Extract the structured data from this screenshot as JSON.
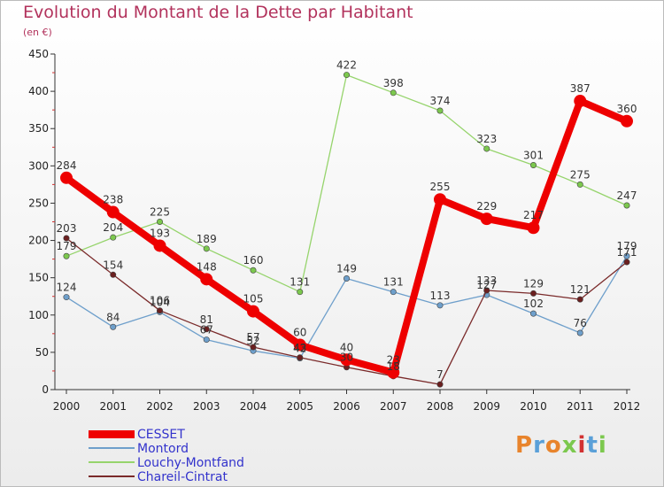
{
  "header": {
    "title": "Evolution du Montant de la Dette par Habitant",
    "subtitle": "(en €)"
  },
  "colors": {
    "title": "#b2325c",
    "legend_text": "#3333cc",
    "axis": "#333333"
  },
  "chart_data": {
    "type": "line",
    "title": "Evolution du Montant de la Dette par Habitant",
    "subtitle": "(en €)",
    "xlabel": "",
    "ylabel": "",
    "ylim": [
      0,
      450
    ],
    "yticks": [
      0,
      50,
      100,
      150,
      200,
      250,
      300,
      350,
      400,
      450
    ],
    "x": [
      "2000",
      "2001",
      "2002",
      "2003",
      "2004",
      "2005",
      "2006",
      "2007",
      "2008",
      "2009",
      "2010",
      "2011",
      "2012"
    ],
    "grid": false,
    "legend_position": "bottom-left",
    "series": [
      {
        "name": "Montord",
        "color": "#6e9fcb",
        "width": 1.3,
        "dot": "#6e9fcb",
        "values": [
          124,
          84,
          104,
          67,
          52,
          42,
          149,
          131,
          113,
          127,
          102,
          76,
          179
        ]
      },
      {
        "name": "Louchy-Montfand",
        "color": "#96d46c",
        "width": 1.3,
        "dot": "#7cc84e",
        "values": [
          179,
          204,
          225,
          189,
          160,
          131,
          422,
          398,
          374,
          323,
          301,
          275,
          247
        ]
      },
      {
        "name": "Chareil-Cintrat",
        "color": "#7a2a2a",
        "width": 1.3,
        "dot": "#6b1f1f",
        "values": [
          203,
          154,
          106,
          81,
          57,
          43,
          30,
          18,
          7,
          133,
          129,
          121,
          171
        ]
      },
      {
        "name": "CESSET",
        "color": "#ee0000",
        "width": 8,
        "dot": "#ee0000",
        "values": [
          284,
          238,
          193,
          148,
          105,
          60,
          40,
          23,
          255,
          229,
          217,
          387,
          360
        ]
      }
    ],
    "legend_order": [
      "CESSET",
      "Montord",
      "Louchy-Montfand",
      "Chareil-Cintrat"
    ],
    "data_labels": [
      {
        "series": "CESSET",
        "values": [
          "284",
          "238",
          "193",
          "148",
          "105",
          "60",
          "40",
          "23",
          "255",
          "229",
          "217",
          "387",
          "360"
        ]
      },
      {
        "series": "Montord",
        "values": [
          "124",
          "84",
          "104",
          "67",
          "52",
          "42",
          "149",
          "131",
          "113",
          "127",
          "102",
          "76",
          "179"
        ]
      },
      {
        "series": "Louchy-Montfand",
        "values": [
          "179",
          "204",
          "225",
          "189",
          "160",
          "131",
          "422",
          "398",
          "374",
          "323",
          "301",
          "275",
          "247"
        ]
      },
      {
        "series": "Chareil-Cintrat",
        "values": [
          "203",
          "154",
          "106",
          "81",
          "57",
          "43",
          "30",
          "18",
          "7",
          "133",
          "129",
          "121",
          "171"
        ]
      }
    ]
  },
  "logo": {
    "text": "Proxiti"
  }
}
